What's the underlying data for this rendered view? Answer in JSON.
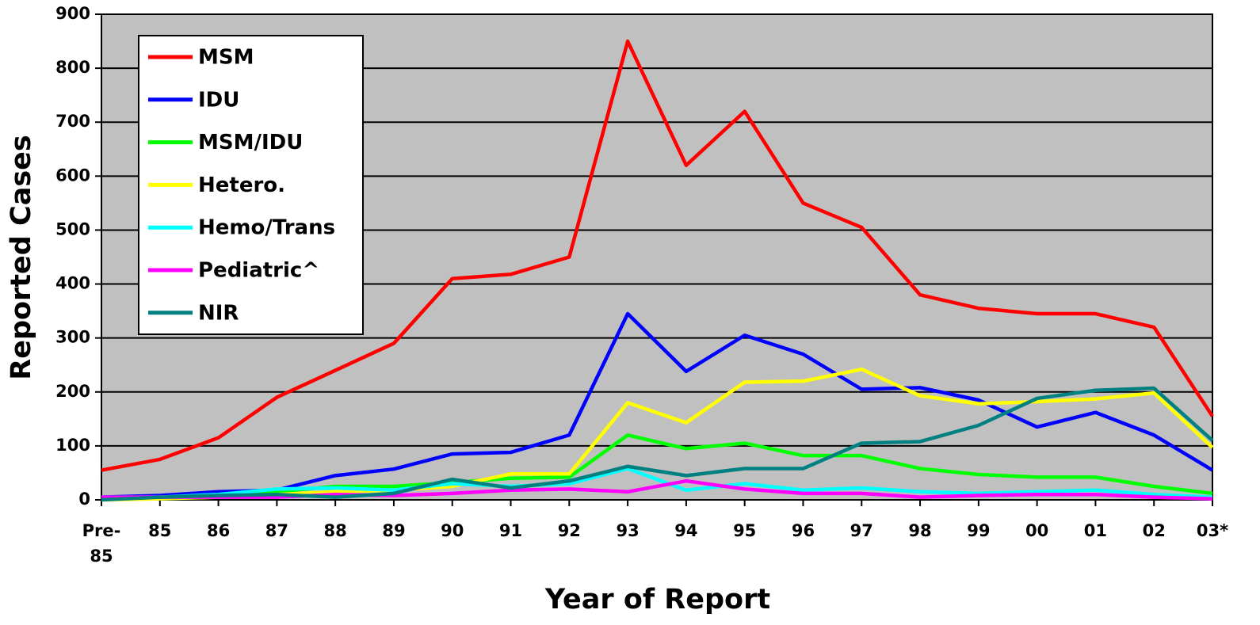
{
  "chart_data": {
    "type": "line",
    "x_label": "Year of Report",
    "y_label": "Reported Cases",
    "categories": [
      "Pre-85",
      "85",
      "86",
      "87",
      "88",
      "89",
      "90",
      "91",
      "92",
      "93",
      "94",
      "95",
      "96",
      "97",
      "98",
      "99",
      "00",
      "01",
      "02",
      "03*"
    ],
    "series": [
      {
        "name": "MSM",
        "color": "#ff0000",
        "values": [
          55,
          75,
          115,
          190,
          240,
          290,
          410,
          418,
          450,
          850,
          620,
          720,
          550,
          505,
          380,
          355,
          345,
          345,
          320,
          155
        ]
      },
      {
        "name": "IDU",
        "color": "#0000ff",
        "values": [
          5,
          8,
          15,
          18,
          45,
          57,
          85,
          88,
          120,
          345,
          238,
          305,
          270,
          205,
          208,
          185,
          135,
          162,
          120,
          55
        ]
      },
      {
        "name": "MSM/IDU",
        "color": "#00ff00",
        "values": [
          2,
          5,
          8,
          15,
          25,
          25,
          32,
          40,
          42,
          120,
          95,
          105,
          82,
          82,
          58,
          47,
          42,
          42,
          25,
          12
        ]
      },
      {
        "name": "Hetero.",
        "color": "#ffff00",
        "values": [
          0,
          2,
          5,
          10,
          15,
          18,
          25,
          48,
          48,
          180,
          143,
          218,
          220,
          242,
          193,
          178,
          182,
          187,
          198,
          97
        ]
      },
      {
        "name": "Hemo/Trans",
        "color": "#00ffff",
        "values": [
          5,
          5,
          10,
          20,
          22,
          18,
          30,
          25,
          30,
          58,
          18,
          30,
          18,
          22,
          15,
          12,
          15,
          18,
          10,
          5
        ]
      },
      {
        "name": "Pediatric^",
        "color": "#ff00ff",
        "values": [
          5,
          5,
          5,
          5,
          10,
          8,
          12,
          18,
          20,
          15,
          35,
          20,
          12,
          12,
          5,
          8,
          10,
          10,
          5,
          2
        ]
      },
      {
        "name": "NIR",
        "color": "#008080",
        "values": [
          0,
          5,
          8,
          10,
          5,
          12,
          38,
          22,
          35,
          62,
          45,
          58,
          58,
          105,
          108,
          138,
          188,
          203,
          207,
          110
        ]
      }
    ],
    "ylim": [
      0,
      900
    ],
    "yticks": [
      0,
      100,
      200,
      300,
      400,
      500,
      600,
      700,
      800,
      900
    ],
    "grid": true,
    "legend": "upper left",
    "plot_background": "#c0c0c0"
  }
}
